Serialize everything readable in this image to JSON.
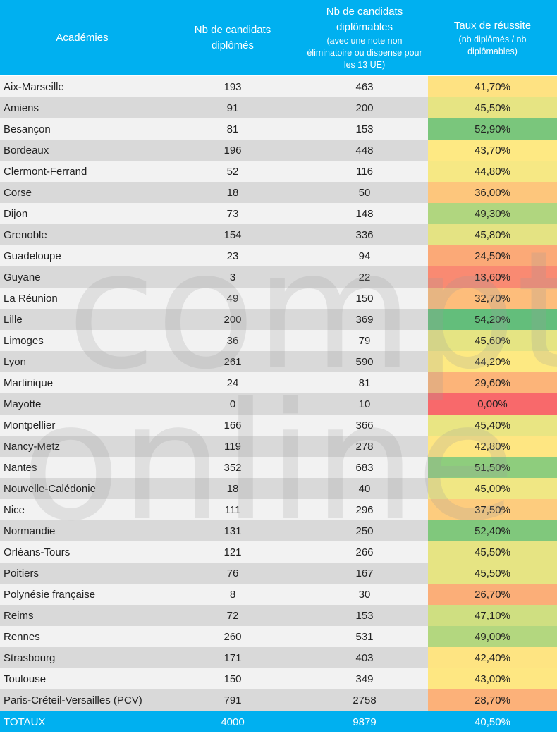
{
  "header": {
    "col1": "Académies",
    "col2": "Nb de candidats diplômés",
    "col3_main": "Nb de candidats diplômables",
    "col3_sub": "(avec une note non éliminatoire ou dispense pour les 13 UE)",
    "col4_main": "Taux de réussite",
    "col4_sub": "(nb diplômés / nb diplômables)"
  },
  "rows": [
    {
      "academie": "Aix-Marseille",
      "diplomes": "193",
      "diplomables": "463",
      "taux": "41,70%",
      "color": "#fee282"
    },
    {
      "academie": "Amiens",
      "diplomes": "91",
      "diplomables": "200",
      "taux": "45,50%",
      "color": "#e6e483"
    },
    {
      "academie": "Besançon",
      "diplomes": "81",
      "diplomables": "153",
      "taux": "52,90%",
      "color": "#7ac67c"
    },
    {
      "academie": "Bordeaux",
      "diplomes": "196",
      "diplomables": "448",
      "taux": "43,70%",
      "color": "#fee983"
    },
    {
      "academie": "Clermont-Ferrand",
      "diplomes": "52",
      "diplomables": "116",
      "taux": "44,80%",
      "color": "#f6e884"
    },
    {
      "academie": "Corse",
      "diplomes": "18",
      "diplomables": "50",
      "taux": "36,00%",
      "color": "#fdc67c"
    },
    {
      "academie": "Dijon",
      "diplomes": "73",
      "diplomables": "148",
      "taux": "49,30%",
      "color": "#b0d67f"
    },
    {
      "academie": "Grenoble",
      "diplomes": "154",
      "diplomables": "336",
      "taux": "45,80%",
      "color": "#e4e383"
    },
    {
      "academie": "Guadeloupe",
      "diplomes": "23",
      "diplomables": "94",
      "taux": "24,50%",
      "color": "#fba977"
    },
    {
      "academie": "Guyane",
      "diplomes": "3",
      "diplomables": "22",
      "taux": "13,60%",
      "color": "#f98a72"
    },
    {
      "academie": "La Réunion",
      "diplomes": "49",
      "diplomables": "150",
      "taux": "32,70%",
      "color": "#fdbd7b"
    },
    {
      "academie": "Lille",
      "diplomes": "200",
      "diplomables": "369",
      "taux": "54,20%",
      "color": "#63be7b"
    },
    {
      "academie": "Limoges",
      "diplomes": "36",
      "diplomables": "79",
      "taux": "45,60%",
      "color": "#e5e483"
    },
    {
      "academie": "Lyon",
      "diplomes": "261",
      "diplomables": "590",
      "taux": "44,20%",
      "color": "#fde982"
    },
    {
      "academie": "Martinique",
      "diplomes": "24",
      "diplomables": "81",
      "taux": "29,60%",
      "color": "#fcb479"
    },
    {
      "academie": "Mayotte",
      "diplomes": "0",
      "diplomables": "10",
      "taux": "0,00%",
      "color": "#f8696b"
    },
    {
      "academie": "Montpellier",
      "diplomes": "166",
      "diplomables": "366",
      "taux": "45,40%",
      "color": "#e9e583"
    },
    {
      "academie": "Nancy-Metz",
      "diplomes": "119",
      "diplomables": "278",
      "taux": "42,80%",
      "color": "#fee682"
    },
    {
      "academie": "Nantes",
      "diplomes": "352",
      "diplomables": "683",
      "taux": "51,50%",
      "color": "#8ecd7d"
    },
    {
      "academie": "Nouvelle-Calédonie",
      "diplomes": "18",
      "diplomables": "40",
      "taux": "45,00%",
      "color": "#f0e784"
    },
    {
      "academie": "Nice",
      "diplomes": "111",
      "diplomables": "296",
      "taux": "37,50%",
      "color": "#fdcc7e"
    },
    {
      "academie": "Normandie",
      "diplomes": "131",
      "diplomables": "250",
      "taux": "52,40%",
      "color": "#80c87c"
    },
    {
      "academie": "Orléans-Tours",
      "diplomes": "121",
      "diplomables": "266",
      "taux": "45,50%",
      "color": "#e6e483"
    },
    {
      "academie": "Poitiers",
      "diplomes": "76",
      "diplomables": "167",
      "taux": "45,50%",
      "color": "#e6e483"
    },
    {
      "academie": "Polynésie française",
      "diplomes": "8",
      "diplomables": "30",
      "taux": "26,70%",
      "color": "#fbae78"
    },
    {
      "academie": "Reims",
      "diplomes": "72",
      "diplomables": "153",
      "taux": "47,10%",
      "color": "#cfdf81"
    },
    {
      "academie": "Rennes",
      "diplomes": "260",
      "diplomables": "531",
      "taux": "49,00%",
      "color": "#b3d77f"
    },
    {
      "academie": "Strasbourg",
      "diplomes": "171",
      "diplomables": "403",
      "taux": "42,40%",
      "color": "#fee482"
    },
    {
      "academie": "Toulouse",
      "diplomes": "150",
      "diplomables": "349",
      "taux": "43,00%",
      "color": "#fee782"
    },
    {
      "academie": "Paris-Créteil-Versailles (PCV)",
      "diplomes": "791",
      "diplomables": "2758",
      "taux": "28,70%",
      "color": "#fcb179"
    }
  ],
  "totals": {
    "label": "TOTAUX",
    "diplomes": "4000",
    "diplomables": "9879",
    "taux": "40,50%"
  },
  "watermark": {
    "line1": "compta",
    "line2": "online"
  }
}
